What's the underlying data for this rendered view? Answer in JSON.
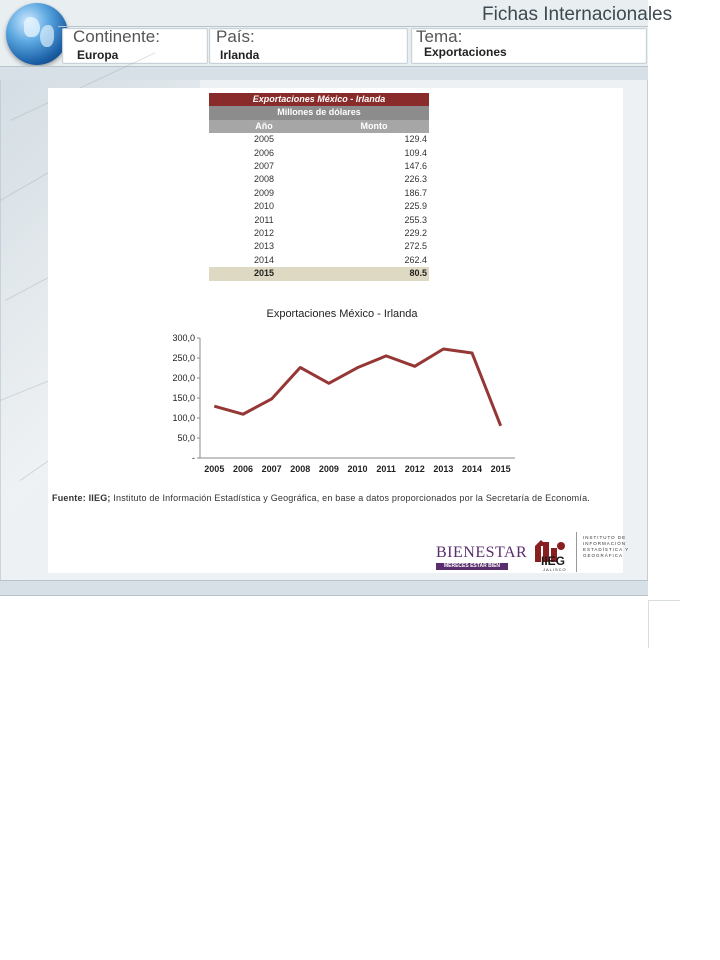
{
  "header": {
    "title": "Fichas Internacionales",
    "continente": {
      "label": "Continente:",
      "value": "Europa"
    },
    "pais": {
      "label": "País:",
      "value": "Irlanda"
    },
    "tema": {
      "label": "Tema:",
      "value": "Exportaciones"
    }
  },
  "table": {
    "title": "Exportaciones México - Irlanda",
    "subtitle": "Millones de dólares",
    "col_year": "Año",
    "col_amount": "Monto",
    "rows": [
      {
        "year": "2005",
        "amount": "129.4"
      },
      {
        "year": "2006",
        "amount": "109.4"
      },
      {
        "year": "2007",
        "amount": "147.6"
      },
      {
        "year": "2008",
        "amount": "226.3"
      },
      {
        "year": "2009",
        "amount": "186.7"
      },
      {
        "year": "2010",
        "amount": "225.9"
      },
      {
        "year": "2011",
        "amount": "255.3"
      },
      {
        "year": "2012",
        "amount": "229.2"
      },
      {
        "year": "2013",
        "amount": "272.5"
      },
      {
        "year": "2014",
        "amount": "262.4"
      },
      {
        "year": "2015",
        "amount": "80.5"
      }
    ]
  },
  "chart_data": {
    "type": "line",
    "title": "Exportaciones México - Irlanda",
    "xlabel": "",
    "ylabel": "",
    "x": [
      "2005",
      "2006",
      "2007",
      "2008",
      "2009",
      "2010",
      "2011",
      "2012",
      "2013",
      "2014",
      "2015"
    ],
    "series": [
      {
        "values": [
          129.4,
          109.4,
          147.6,
          226.3,
          186.7,
          225.9,
          255.3,
          229.2,
          272.5,
          262.4,
          80.5
        ]
      }
    ],
    "ylim": [
      0,
      300
    ],
    "yticks": [
      "-",
      "50,0",
      "100,0",
      "150,0",
      "200,0",
      "250,0",
      "300,0"
    ],
    "grid": false,
    "legend": "none",
    "line_color": "#953735"
  },
  "footer": {
    "source_label": "Fuente:",
    "source_org": "IIEG;",
    "source_text": "Instituto de Información Estadística y Geográfica, en base a datos proporcionados por la Secretaría de Economía."
  },
  "logos": {
    "bienestar": {
      "word": "BIENESTAR",
      "tagline": "MERECES ESTAR BIEN"
    },
    "iieg": {
      "name": "IIEG",
      "state": "JALISCO",
      "institute_lines": [
        "INSTITUTO DE",
        "INFORMACIÓN",
        "ESTADÍSTICA Y",
        "GEOGRÁFICA"
      ]
    }
  }
}
